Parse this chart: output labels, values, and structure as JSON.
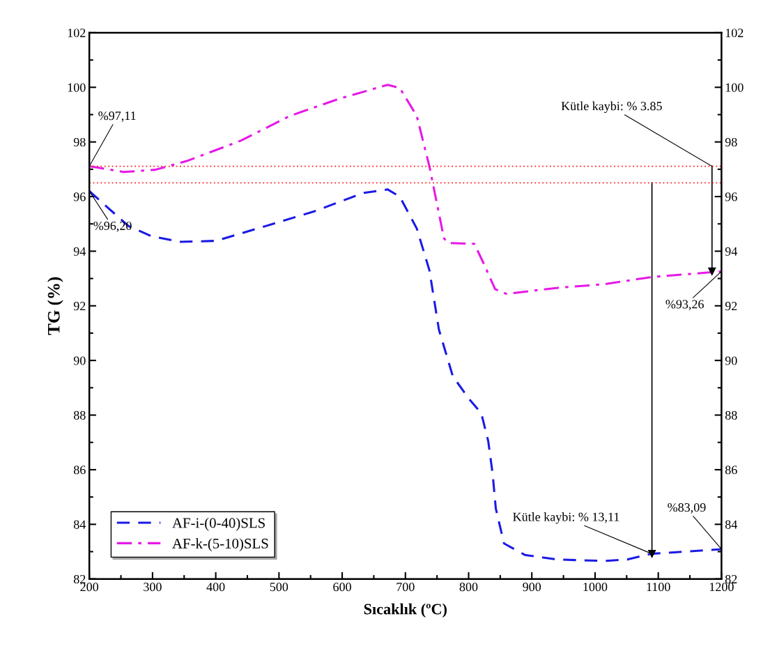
{
  "chart_data": {
    "type": "line",
    "xlabel": "Sıcaklık (ºC)",
    "ylabel": "TG (%)",
    "xlim": [
      200,
      1200
    ],
    "xticks": [
      200,
      300,
      400,
      500,
      600,
      700,
      800,
      900,
      1000,
      1100,
      1200
    ],
    "ylim": [
      82,
      102
    ],
    "yticks": [
      82,
      84,
      86,
      88,
      90,
      92,
      94,
      96,
      98,
      100,
      102
    ],
    "y2lim": [
      82,
      102
    ],
    "y2ticks": [
      82,
      84,
      86,
      88,
      90,
      92,
      94,
      96,
      98,
      100,
      102
    ],
    "legend": "bottom left",
    "grid": false,
    "series": [
      {
        "name": "AF-i-(0-40)SLS",
        "color": "#1a1ae6",
        "line_style": "dashed",
        "x": [
          200,
          227,
          262,
          297,
          343,
          401,
          479,
          556,
          633,
          672,
          691,
          718,
          738,
          753,
          775,
          801,
          820,
          831,
          838,
          843,
          856,
          889,
          941,
          1014,
          1051,
          1088,
          1200
        ],
        "values": [
          96.2,
          95.64,
          94.92,
          94.56,
          94.34,
          94.38,
          94.92,
          95.46,
          96.13,
          96.26,
          96.0,
          94.83,
          93.3,
          91.13,
          89.42,
          88.58,
          88.07,
          87.05,
          85.85,
          84.58,
          83.3,
          82.88,
          82.71,
          82.66,
          82.71,
          82.92,
          83.09
        ]
      },
      {
        "name": "AF-k-(5-10)SLS",
        "color": "#e619e6",
        "line_style": "dashdot",
        "x": [
          200,
          254,
          304,
          354,
          440,
          517,
          595,
          672,
          691,
          718,
          738,
          761,
          768,
          809,
          823,
          842,
          860,
          941,
          1014,
          1088,
          1200
        ],
        "values": [
          97.11,
          96.9,
          96.98,
          97.3,
          98.05,
          98.95,
          99.58,
          100.09,
          99.98,
          98.95,
          97.1,
          94.47,
          94.3,
          94.27,
          93.59,
          92.61,
          92.44,
          92.66,
          92.79,
          93.05,
          93.26
        ]
      },
      {
        "color": "#000000",
        "line_style": "solid",
        "marker": "triangle",
        "x": [
          1185,
          1185
        ],
        "values": [
          97.11,
          93.26
        ]
      },
      {
        "color": "#000000",
        "line_style": "solid",
        "marker": "triangle",
        "x": [
          1090,
          1090
        ],
        "values": [
          96.5,
          82.92
        ]
      }
    ],
    "ref_lines": [
      {
        "axis": "y",
        "value": 97.11,
        "color": "#ff2020",
        "line_style": "dotted"
      },
      {
        "axis": "y",
        "value": 96.5,
        "color": "#ff2020",
        "line_style": "dotted"
      }
    ],
    "annotations": [
      {
        "text": "%97,11",
        "x": 200,
        "y": 97.11
      },
      {
        "text": "%96,20",
        "x": 200,
        "y": 96.2
      },
      {
        "text": "%93,26",
        "x": 1200,
        "y": 93.26
      },
      {
        "text": "%83,09",
        "x": 1200,
        "y": 83.09
      },
      {
        "text": "Kütle kaybi: % 3.85",
        "x": 1185,
        "y": 97.11
      },
      {
        "text": "Kütle kaybi: % 13,11",
        "x": 1090,
        "y": 82.92
      }
    ]
  }
}
